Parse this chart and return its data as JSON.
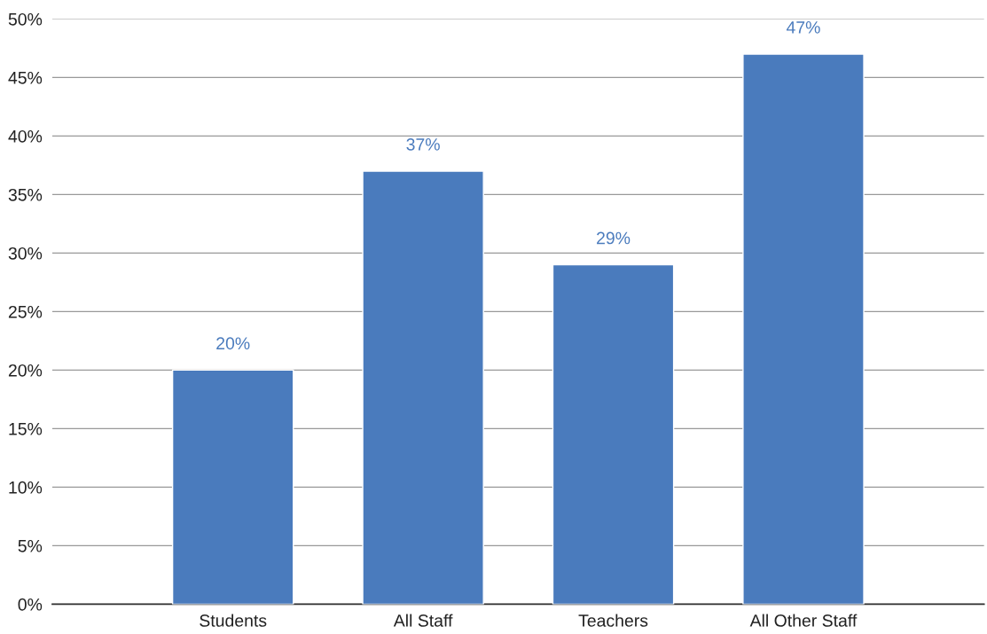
{
  "chart_data": {
    "type": "bar",
    "categories": [
      "Students",
      "All Staff",
      "Teachers",
      "All Other Staff"
    ],
    "values": [
      20,
      37,
      29,
      47
    ],
    "value_labels": [
      "20%",
      "37%",
      "29%",
      "47%"
    ],
    "color": "#4a7bbd",
    "ylim": [
      0,
      50
    ],
    "yticks": [
      {
        "value": 0,
        "label": "0%"
      },
      {
        "value": 5,
        "label": "5%"
      },
      {
        "value": 10,
        "label": "10%"
      },
      {
        "value": 15,
        "label": "15%"
      },
      {
        "value": 20,
        "label": "20%"
      },
      {
        "value": 25,
        "label": "25%"
      },
      {
        "value": 30,
        "label": "30%"
      },
      {
        "value": 35,
        "label": "35%"
      },
      {
        "value": 40,
        "label": "40%"
      },
      {
        "value": 45,
        "label": "45%"
      },
      {
        "value": 50,
        "label": "50%"
      }
    ],
    "grid": "y"
  }
}
